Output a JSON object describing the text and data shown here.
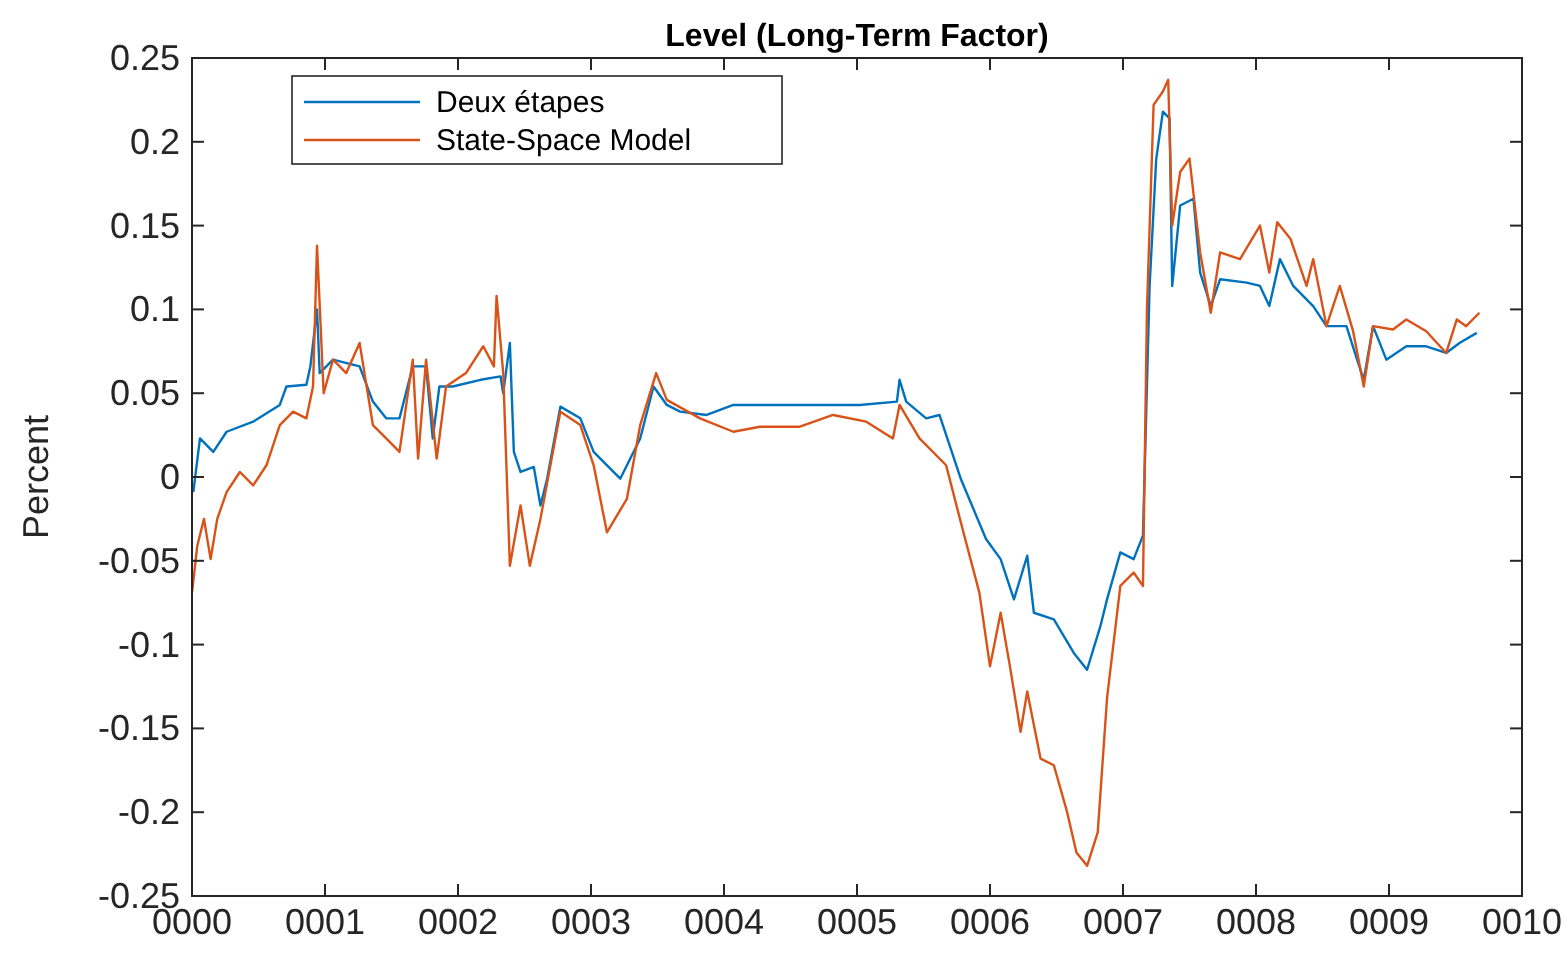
{
  "chart_data": {
    "type": "line",
    "title": "Level (Long-Term Factor)",
    "ylabel": "Percent",
    "xlim": [
      0,
      10
    ],
    "xticks": [
      {
        "value": 0,
        "label": "0000"
      },
      {
        "value": 1,
        "label": "0001"
      },
      {
        "value": 2,
        "label": "0002"
      },
      {
        "value": 3,
        "label": "0003"
      },
      {
        "value": 4,
        "label": "0004"
      },
      {
        "value": 5,
        "label": "0005"
      },
      {
        "value": 6,
        "label": "0006"
      },
      {
        "value": 7,
        "label": "0007"
      },
      {
        "value": 8,
        "label": "0008"
      },
      {
        "value": 9,
        "label": "0009"
      },
      {
        "value": 10,
        "label": "0010"
      }
    ],
    "ylim": [
      -0.25,
      0.25
    ],
    "yticks": [
      -0.25,
      -0.2,
      -0.15,
      -0.1,
      -0.05,
      0,
      0.05,
      0.1,
      0.15,
      0.2,
      0.25
    ],
    "grid": false,
    "legend": "top left",
    "marker": "none",
    "line_style": "solid",
    "series": [
      {
        "name": "Deux étapes",
        "color": "#0072bd",
        "x": [
          0.01,
          0.06,
          0.16,
          0.26,
          0.46,
          0.66,
          0.71,
          0.86,
          0.89,
          0.94,
          0.96,
          1.06,
          1.26,
          1.36,
          1.46,
          1.56,
          1.66,
          1.76,
          1.81,
          1.86,
          1.96,
          2.17,
          2.32,
          2.34,
          2.39,
          2.42,
          2.47,
          2.57,
          2.62,
          2.67,
          2.77,
          2.92,
          3.02,
          3.07,
          3.22,
          3.37,
          3.47,
          3.57,
          3.67,
          3.87,
          4.07,
          4.27,
          4.57,
          4.82,
          5.02,
          5.3,
          5.32,
          5.37,
          5.52,
          5.62,
          5.78,
          5.97,
          6.08,
          6.18,
          6.28,
          6.33,
          6.48,
          6.63,
          6.73,
          6.83,
          6.88,
          6.98,
          7.08,
          7.15,
          7.2,
          7.25,
          7.3,
          7.35,
          7.37,
          7.43,
          7.53,
          7.58,
          7.66,
          7.73,
          7.93,
          8.03,
          8.1,
          8.18,
          8.28,
          8.43,
          8.53,
          8.68,
          8.76,
          8.81,
          8.88,
          8.98,
          9.13,
          9.28,
          9.43,
          9.53,
          9.66
        ],
        "values": [
          -0.009,
          0.023,
          0.015,
          0.027,
          0.033,
          0.043,
          0.054,
          0.055,
          0.066,
          0.1,
          0.062,
          0.07,
          0.066,
          0.045,
          0.035,
          0.035,
          0.066,
          0.066,
          0.023,
          0.054,
          0.054,
          0.058,
          0.06,
          0.05,
          0.08,
          0.015,
          0.003,
          0.006,
          -0.017,
          -0.001,
          0.042,
          0.035,
          0.015,
          0.011,
          -0.001,
          0.023,
          0.054,
          0.043,
          0.039,
          0.037,
          0.043,
          0.043,
          0.043,
          0.043,
          0.043,
          0.045,
          0.058,
          0.045,
          0.035,
          0.037,
          -0.001,
          -0.037,
          -0.049,
          -0.073,
          -0.047,
          -0.081,
          -0.085,
          -0.105,
          -0.115,
          -0.089,
          -0.073,
          -0.045,
          -0.049,
          -0.035,
          0.114,
          0.19,
          0.218,
          0.214,
          0.114,
          0.162,
          0.166,
          0.122,
          0.102,
          0.118,
          0.116,
          0.114,
          0.102,
          0.13,
          0.114,
          0.102,
          0.09,
          0.09,
          0.07,
          0.058,
          0.09,
          0.07,
          0.078,
          0.078,
          0.074,
          0.08,
          0.086
        ]
      },
      {
        "name": "State-Space Model",
        "color": "#d95319",
        "x": [
          0,
          0.04,
          0.09,
          0.14,
          0.19,
          0.26,
          0.36,
          0.46,
          0.56,
          0.66,
          0.76,
          0.86,
          0.91,
          0.94,
          0.99,
          1.06,
          1.16,
          1.26,
          1.36,
          1.46,
          1.56,
          1.66,
          1.7,
          1.76,
          1.84,
          1.91,
          2.06,
          2.19,
          2.27,
          2.29,
          2.34,
          2.39,
          2.47,
          2.54,
          2.62,
          2.77,
          2.92,
          3.02,
          3.12,
          3.27,
          3.37,
          3.49,
          3.57,
          3.82,
          4.07,
          4.27,
          4.57,
          4.82,
          5.07,
          5.27,
          5.32,
          5.47,
          5.67,
          5.8,
          5.92,
          6,
          6.08,
          6.15,
          6.23,
          6.28,
          6.38,
          6.48,
          6.58,
          6.65,
          6.73,
          6.81,
          6.88,
          6.98,
          7.08,
          7.15,
          7.18,
          7.23,
          7.3,
          7.34,
          7.37,
          7.43,
          7.5,
          7.58,
          7.66,
          7.73,
          7.88,
          8.03,
          8.1,
          8.16,
          8.26,
          8.38,
          8.43,
          8.53,
          8.63,
          8.73,
          8.81,
          8.88,
          9.03,
          9.13,
          9.28,
          9.43,
          9.51,
          9.58,
          9.68
        ],
        "values": [
          -0.069,
          -0.041,
          -0.025,
          -0.049,
          -0.025,
          -0.009,
          0.003,
          -0.005,
          0.007,
          0.031,
          0.039,
          0.035,
          0.054,
          0.138,
          0.05,
          0.07,
          0.062,
          0.08,
          0.031,
          0.023,
          0.015,
          0.07,
          0.011,
          0.07,
          0.011,
          0.054,
          0.062,
          0.078,
          0.066,
          0.108,
          0.062,
          -0.053,
          -0.017,
          -0.053,
          -0.025,
          0.039,
          0.031,
          0.007,
          -0.033,
          -0.013,
          0.031,
          0.062,
          0.046,
          0.035,
          0.027,
          0.03,
          0.03,
          0.037,
          0.033,
          0.023,
          0.043,
          0.023,
          0.007,
          -0.033,
          -0.069,
          -0.113,
          -0.081,
          -0.113,
          -0.152,
          -0.128,
          -0.168,
          -0.172,
          -0.2,
          -0.224,
          -0.232,
          -0.212,
          -0.132,
          -0.065,
          -0.057,
          -0.065,
          0.1,
          0.222,
          0.23,
          0.237,
          0.15,
          0.182,
          0.19,
          0.134,
          0.098,
          0.134,
          0.13,
          0.15,
          0.122,
          0.152,
          0.142,
          0.114,
          0.13,
          0.09,
          0.114,
          0.087,
          0.054,
          0.09,
          0.088,
          0.094,
          0.087,
          0.074,
          0.094,
          0.09,
          0.098
        ]
      }
    ]
  }
}
